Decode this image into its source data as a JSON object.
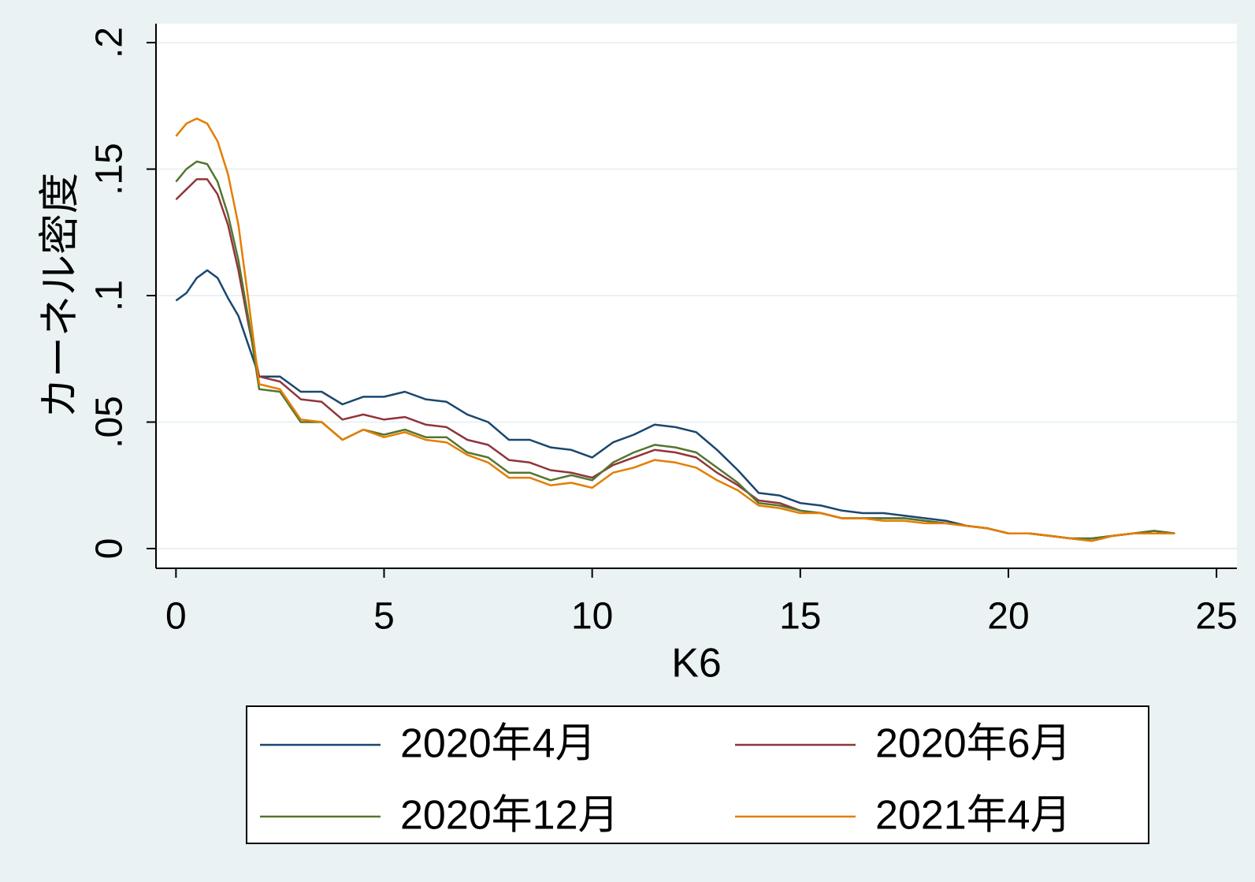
{
  "chart_data": {
    "type": "line",
    "x": [
      0,
      0.25,
      0.5,
      0.75,
      1,
      1.25,
      1.5,
      1.75,
      2,
      2.5,
      3,
      3.5,
      4,
      4.5,
      5,
      5.5,
      6,
      6.5,
      7,
      7.5,
      8,
      8.5,
      9,
      9.5,
      10,
      10.5,
      11,
      11.5,
      12,
      12.5,
      13,
      13.5,
      14,
      14.5,
      15,
      15.5,
      16,
      16.5,
      17,
      17.5,
      18,
      18.5,
      19,
      19.5,
      20,
      20.5,
      21,
      21.5,
      22,
      22.5,
      23,
      23.5,
      24
    ],
    "series": [
      {
        "name": "2020年4月",
        "color": "#1a476f",
        "values": [
          0.098,
          0.101,
          0.107,
          0.11,
          0.107,
          0.099,
          0.092,
          0.08,
          0.068,
          0.068,
          0.062,
          0.062,
          0.057,
          0.06,
          0.06,
          0.062,
          0.059,
          0.058,
          0.053,
          0.05,
          0.043,
          0.043,
          0.04,
          0.039,
          0.036,
          0.042,
          0.045,
          0.049,
          0.048,
          0.046,
          0.039,
          0.031,
          0.022,
          0.021,
          0.018,
          0.017,
          0.015,
          0.014,
          0.014,
          0.013,
          0.012,
          0.011,
          0.009,
          0.008,
          0.006,
          0.006,
          0.005,
          0.004,
          0.003,
          0.005,
          0.006,
          0.006,
          0.006
        ]
      },
      {
        "name": "2020年6月",
        "color": "#90353b",
        "values": [
          0.138,
          0.142,
          0.146,
          0.146,
          0.14,
          0.128,
          0.11,
          0.088,
          0.068,
          0.066,
          0.059,
          0.058,
          0.051,
          0.053,
          0.051,
          0.052,
          0.049,
          0.048,
          0.043,
          0.041,
          0.035,
          0.034,
          0.031,
          0.03,
          0.028,
          0.033,
          0.036,
          0.039,
          0.038,
          0.036,
          0.03,
          0.025,
          0.019,
          0.018,
          0.015,
          0.014,
          0.012,
          0.012,
          0.012,
          0.012,
          0.011,
          0.01,
          0.009,
          0.008,
          0.006,
          0.006,
          0.005,
          0.004,
          0.004,
          0.005,
          0.006,
          0.007,
          0.006
        ]
      },
      {
        "name": "2020年12月",
        "color": "#55752f",
        "values": [
          0.145,
          0.15,
          0.153,
          0.152,
          0.145,
          0.132,
          0.114,
          0.09,
          0.063,
          0.062,
          0.05,
          0.05,
          0.043,
          0.047,
          0.045,
          0.047,
          0.044,
          0.044,
          0.038,
          0.036,
          0.03,
          0.03,
          0.027,
          0.029,
          0.027,
          0.034,
          0.038,
          0.041,
          0.04,
          0.038,
          0.032,
          0.026,
          0.018,
          0.017,
          0.015,
          0.014,
          0.012,
          0.012,
          0.012,
          0.012,
          0.011,
          0.01,
          0.009,
          0.008,
          0.006,
          0.006,
          0.005,
          0.004,
          0.004,
          0.005,
          0.006,
          0.007,
          0.006
        ]
      },
      {
        "name": "2021年4月",
        "color": "#e37e00",
        "values": [
          0.163,
          0.168,
          0.17,
          0.168,
          0.161,
          0.148,
          0.128,
          0.097,
          0.065,
          0.063,
          0.051,
          0.05,
          0.043,
          0.047,
          0.044,
          0.046,
          0.043,
          0.042,
          0.037,
          0.034,
          0.028,
          0.028,
          0.025,
          0.026,
          0.024,
          0.03,
          0.032,
          0.035,
          0.034,
          0.032,
          0.027,
          0.023,
          0.017,
          0.016,
          0.014,
          0.014,
          0.012,
          0.012,
          0.011,
          0.011,
          0.01,
          0.01,
          0.009,
          0.008,
          0.006,
          0.006,
          0.005,
          0.004,
          0.003,
          0.005,
          0.006,
          0.006,
          0.006
        ]
      }
    ],
    "x_label": "K6",
    "y_label": "カーネル密度",
    "xlim": [
      -0.48,
      25.49
    ],
    "xticks": [
      0,
      5,
      10,
      15,
      20,
      25
    ],
    "ylim": [
      -0.0078,
      0.2075
    ],
    "yticks": [
      0,
      {
        "value": 0.05,
        "label": ".05"
      },
      {
        "value": 0.1,
        "label": ".1"
      },
      {
        "value": 0.15,
        "label": ".15"
      },
      {
        "value": 0.2,
        "label": ".2"
      }
    ],
    "grid": true,
    "legend": "bottom"
  }
}
